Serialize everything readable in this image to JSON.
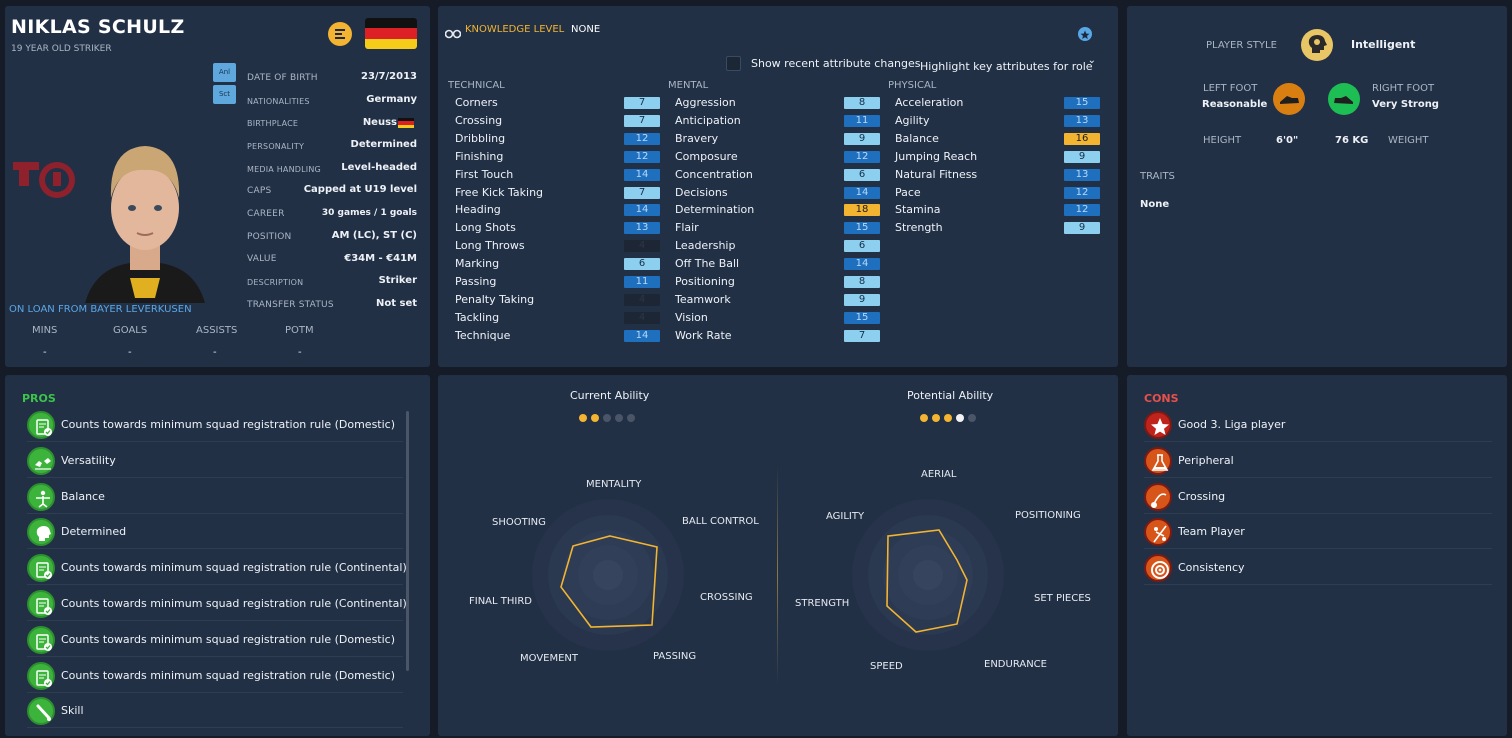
{
  "player": {
    "name": "NIKLAS SCHULZ",
    "subtitle": "19 YEAR OLD STRIKER",
    "role_icons": [
      "Anl",
      "Sct"
    ],
    "loan_text": "ON LOAN FROM BAYER LEVERKUSEN",
    "details": [
      {
        "label": "DATE OF BIRTH",
        "value": "23/7/2013"
      },
      {
        "label": "NATIONALITIES",
        "value": "Germany"
      },
      {
        "label": "BIRTHPLACE",
        "value": "Neuss"
      },
      {
        "label": "PERSONALITY",
        "value": "Determined"
      },
      {
        "label": "MEDIA HANDLING",
        "value": "Level-headed"
      },
      {
        "label": "CAPS",
        "value": "Capped at U19 level"
      },
      {
        "label": "CAREER",
        "value": "30 games /   1 goals"
      },
      {
        "label": "POSITION",
        "value": "AM (LC), ST (C)"
      },
      {
        "label": "VALUE",
        "value": "€34M - €41M"
      },
      {
        "label": "DESCRIPTION",
        "value": "Striker"
      },
      {
        "label": "TRANSFER STATUS",
        "value": "Not set"
      }
    ],
    "stats": [
      {
        "label": "MINS",
        "value": "-"
      },
      {
        "label": "GOALS",
        "value": "-"
      },
      {
        "label": "ASSISTS",
        "value": "-"
      },
      {
        "label": "POTM",
        "value": "-"
      }
    ]
  },
  "knowledge": {
    "label": "KNOWLEDGE LEVEL",
    "value": "NONE",
    "checkbox_label": "Show recent attribute changes",
    "dropdown_label": "Highlight key attributes for role"
  },
  "attributes": {
    "technical": {
      "heading": "TECHNICAL",
      "items": [
        {
          "name": "Corners",
          "value": "7",
          "tier": "hi"
        },
        {
          "name": "Crossing",
          "value": "7",
          "tier": "hi"
        },
        {
          "name": "Dribbling",
          "value": "12",
          "tier": "mid"
        },
        {
          "name": "Finishing",
          "value": "12",
          "tier": "mid"
        },
        {
          "name": "First Touch",
          "value": "14",
          "tier": "mid"
        },
        {
          "name": "Free Kick Taking",
          "value": "7",
          "tier": "hi"
        },
        {
          "name": "Heading",
          "value": "14",
          "tier": "mid"
        },
        {
          "name": "Long Shots",
          "value": "13",
          "tier": "mid"
        },
        {
          "name": "Long Throws",
          "value": "4",
          "tier": "lo"
        },
        {
          "name": "Marking",
          "value": "6",
          "tier": "hi"
        },
        {
          "name": "Passing",
          "value": "11",
          "tier": "mid"
        },
        {
          "name": "Penalty Taking",
          "value": "4",
          "tier": "lo"
        },
        {
          "name": "Tackling",
          "value": "4",
          "tier": "lo"
        },
        {
          "name": "Technique",
          "value": "14",
          "tier": "mid"
        }
      ]
    },
    "mental": {
      "heading": "MENTAL",
      "items": [
        {
          "name": "Aggression",
          "value": "8",
          "tier": "hi"
        },
        {
          "name": "Anticipation",
          "value": "11",
          "tier": "mid"
        },
        {
          "name": "Bravery",
          "value": "9",
          "tier": "hi"
        },
        {
          "name": "Composure",
          "value": "12",
          "tier": "mid"
        },
        {
          "name": "Concentration",
          "value": "6",
          "tier": "hi"
        },
        {
          "name": "Decisions",
          "value": "14",
          "tier": "mid"
        },
        {
          "name": "Determination",
          "value": "18",
          "tier": "top"
        },
        {
          "name": "Flair",
          "value": "15",
          "tier": "mid"
        },
        {
          "name": "Leadership",
          "value": "6",
          "tier": "hi"
        },
        {
          "name": "Off The Ball",
          "value": "14",
          "tier": "mid"
        },
        {
          "name": "Positioning",
          "value": "8",
          "tier": "hi"
        },
        {
          "name": "Teamwork",
          "value": "9",
          "tier": "hi"
        },
        {
          "name": "Vision",
          "value": "15",
          "tier": "mid"
        },
        {
          "name": "Work Rate",
          "value": "7",
          "tier": "hi"
        }
      ]
    },
    "physical": {
      "heading": "PHYSICAL",
      "items": [
        {
          "name": "Acceleration",
          "value": "15",
          "tier": "mid"
        },
        {
          "name": "Agility",
          "value": "13",
          "tier": "mid"
        },
        {
          "name": "Balance",
          "value": "16",
          "tier": "top"
        },
        {
          "name": "Jumping Reach",
          "value": "9",
          "tier": "hi"
        },
        {
          "name": "Natural Fitness",
          "value": "13",
          "tier": "mid"
        },
        {
          "name": "Pace",
          "value": "12",
          "tier": "mid"
        },
        {
          "name": "Stamina",
          "value": "12",
          "tier": "mid"
        },
        {
          "name": "Strength",
          "value": "9",
          "tier": "hi"
        }
      ]
    }
  },
  "profile": {
    "style_label": "PLAYER STYLE",
    "style_value": "Intelligent",
    "left_foot_label": "LEFT FOOT",
    "left_foot_value": "Reasonable",
    "right_foot_label": "RIGHT FOOT",
    "right_foot_value": "Very Strong",
    "height_label": "HEIGHT",
    "height_value": "6'0\"",
    "weight_value": "76 KG",
    "weight_label": "WEIGHT",
    "traits_label": "TRAITS",
    "traits_value": "None"
  },
  "pros": {
    "heading": "PROS",
    "items": [
      {
        "text": "Counts towards minimum squad registration rule (Domestic)",
        "icon": "registration-icon"
      },
      {
        "text": "Versatility",
        "icon": "versatility-icon"
      },
      {
        "text": "Balance",
        "icon": "balance-icon"
      },
      {
        "text": "Determined",
        "icon": "head-icon"
      },
      {
        "text": "Counts towards minimum squad registration rule (Continental)",
        "icon": "registration-icon"
      },
      {
        "text": "Counts towards minimum squad registration rule (Continental)",
        "icon": "registration-icon"
      },
      {
        "text": "Counts towards minimum squad registration rule (Domestic)",
        "icon": "registration-icon"
      },
      {
        "text": "Counts towards minimum squad registration rule (Domestic)",
        "icon": "registration-icon"
      },
      {
        "text": "Skill",
        "icon": "skill-icon"
      }
    ]
  },
  "cons": {
    "heading": "CONS",
    "items": [
      {
        "text": "Good 3. Liga player",
        "icon": "star-icon"
      },
      {
        "text": "Peripheral",
        "icon": "flask-icon"
      },
      {
        "text": "Crossing",
        "icon": "crossing-icon"
      },
      {
        "text": "Team Player",
        "icon": "team-icon"
      },
      {
        "text": "Consistency",
        "icon": "target-icon"
      }
    ]
  },
  "ability": {
    "current_label": "Current Ability",
    "current_stars": 2,
    "potential_label": "Potential Ability",
    "potential_stars": 3.5,
    "max_stars": 5
  },
  "radar_left": {
    "axes": [
      "MENTALITY",
      "BALL CONTROL",
      "CROSSING",
      "PASSING",
      "MOVEMENT",
      "FINAL THIRD",
      "SHOOTING"
    ]
  },
  "radar_right": {
    "axes": [
      "AERIAL",
      "POSITIONING",
      "SET PIECES",
      "ENDURANCE",
      "SPEED",
      "STRENGTH",
      "AGILITY"
    ]
  },
  "colors": {
    "panel": "#223046",
    "accent_gold": "#f2b431",
    "pros_green": "#3cc44a",
    "cons_red": "#e8504a",
    "link_blue": "#5aa7e6"
  }
}
